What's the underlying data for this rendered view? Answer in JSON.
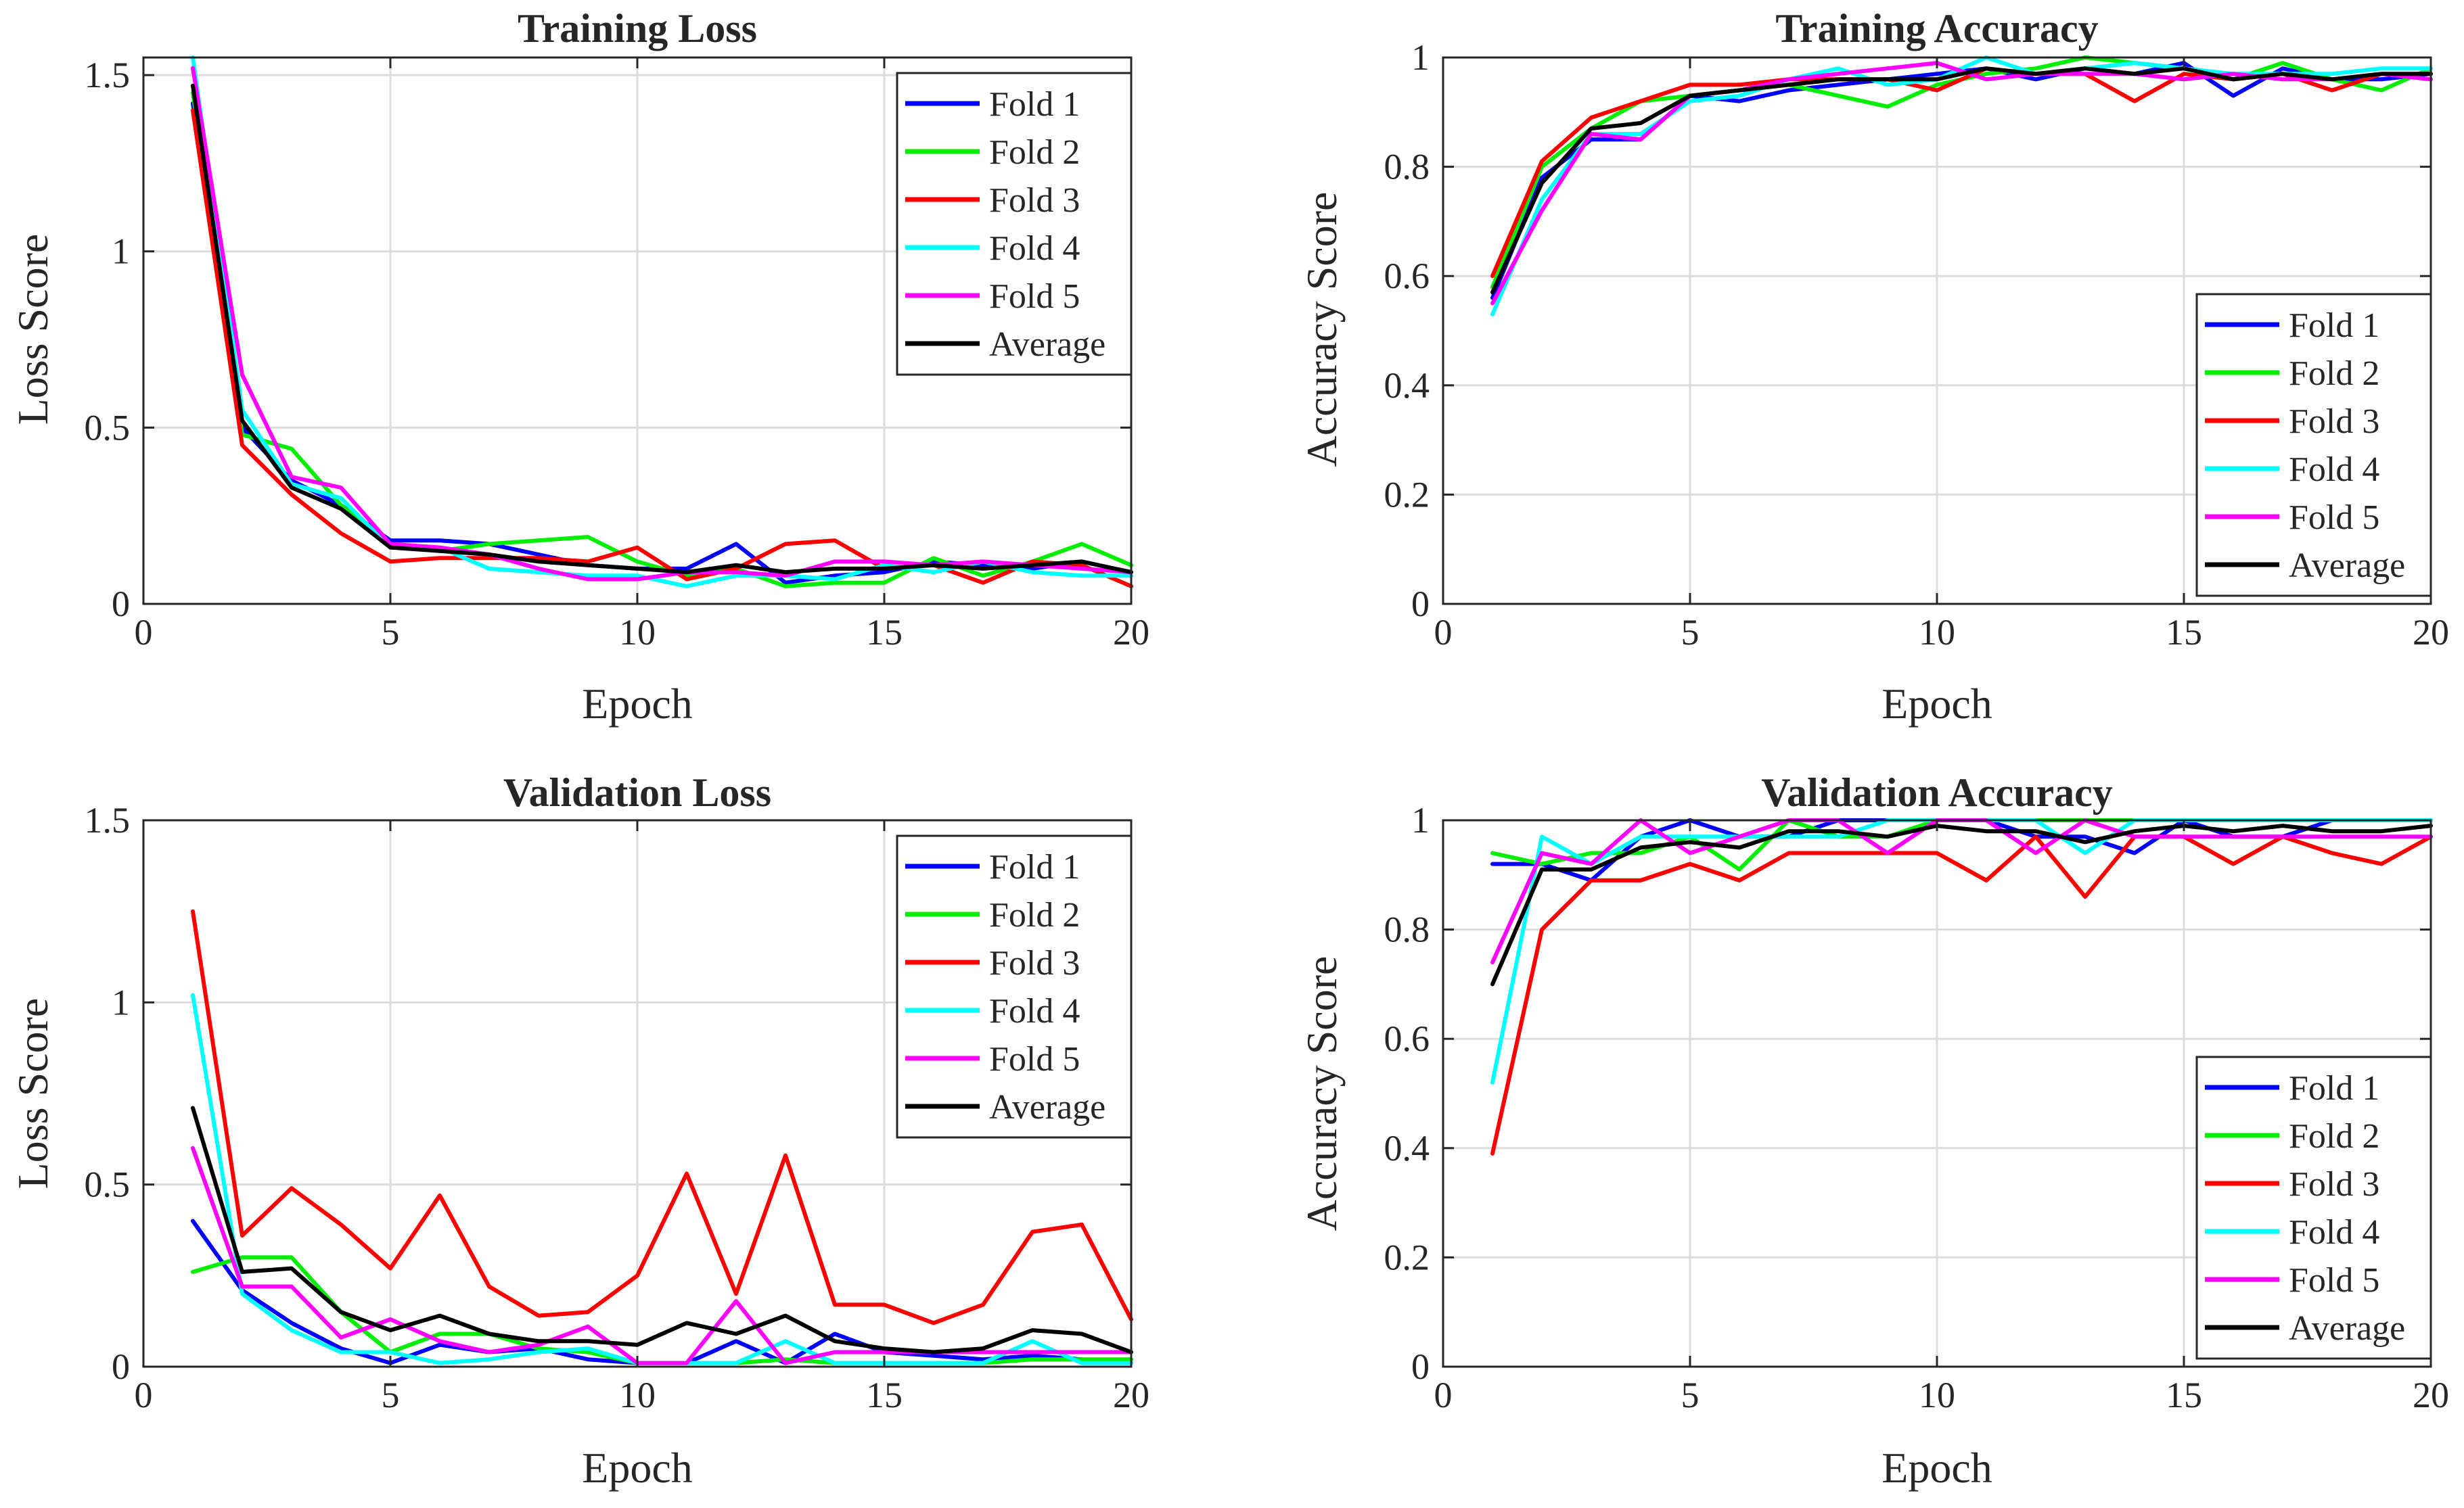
{
  "legend_labels": [
    "Fold 1",
    "Fold 2",
    "Fold 3",
    "Fold 4",
    "Fold 5",
    "Average"
  ],
  "colors": {
    "Fold 1": "#0000ff",
    "Fold 2": "#00ee00",
    "Fold 3": "#ff0000",
    "Fold 4": "#00ffff",
    "Fold 5": "#ff00ff",
    "Average": "#000000"
  },
  "chart_data": [
    {
      "type": "line",
      "title": "Training Loss",
      "xlabel": "Epoch",
      "ylabel": "Loss Score",
      "xlim": [
        0,
        20
      ],
      "ylim": [
        0,
        1.55
      ],
      "xticks": [
        0,
        5,
        10,
        15,
        20
      ],
      "yticks": [
        0,
        0.5,
        1,
        1.5
      ],
      "xtick_labels": [
        "0",
        "5",
        "10",
        "15",
        "20"
      ],
      "ytick_labels": [
        "0",
        "0.5",
        "1",
        "1.5"
      ],
      "grid": true,
      "legend_position": "top-right",
      "x": [
        1,
        2,
        3,
        4,
        5,
        6,
        7,
        8,
        9,
        10,
        11,
        12,
        13,
        14,
        15,
        16,
        17,
        18,
        19,
        20
      ],
      "series": [
        {
          "name": "Fold 1",
          "values": [
            1.42,
            0.5,
            0.35,
            0.28,
            0.18,
            0.18,
            0.17,
            0.14,
            0.11,
            0.1,
            0.1,
            0.17,
            0.06,
            0.08,
            0.09,
            0.12,
            0.11,
            0.1,
            0.12,
            0.09
          ]
        },
        {
          "name": "Fold 2",
          "values": [
            1.45,
            0.48,
            0.44,
            0.28,
            0.17,
            0.15,
            0.17,
            0.18,
            0.19,
            0.12,
            0.08,
            0.1,
            0.05,
            0.06,
            0.06,
            0.13,
            0.08,
            0.12,
            0.17,
            0.11
          ]
        },
        {
          "name": "Fold 3",
          "values": [
            1.4,
            0.45,
            0.31,
            0.2,
            0.12,
            0.13,
            0.13,
            0.13,
            0.12,
            0.16,
            0.07,
            0.1,
            0.17,
            0.18,
            0.1,
            0.11,
            0.06,
            0.12,
            0.11,
            0.05
          ]
        },
        {
          "name": "Fold 4",
          "values": [
            1.55,
            0.55,
            0.34,
            0.3,
            0.16,
            0.16,
            0.1,
            0.09,
            0.08,
            0.08,
            0.05,
            0.08,
            0.08,
            0.07,
            0.11,
            0.09,
            0.12,
            0.09,
            0.08,
            0.08
          ]
        },
        {
          "name": "Fold 5",
          "values": [
            1.52,
            0.65,
            0.36,
            0.33,
            0.17,
            0.16,
            0.14,
            0.1,
            0.07,
            0.07,
            0.09,
            0.09,
            0.08,
            0.12,
            0.12,
            0.11,
            0.12,
            0.11,
            0.1,
            0.09
          ]
        },
        {
          "name": "Average",
          "values": [
            1.47,
            0.52,
            0.33,
            0.27,
            0.16,
            0.15,
            0.14,
            0.12,
            0.11,
            0.1,
            0.09,
            0.11,
            0.09,
            0.1,
            0.1,
            0.11,
            0.1,
            0.11,
            0.12,
            0.09
          ]
        }
      ]
    },
    {
      "type": "line",
      "title": "Training Accuracy",
      "xlabel": "Epoch",
      "ylabel": "Accuracy Score",
      "xlim": [
        0,
        20
      ],
      "ylim": [
        0,
        1
      ],
      "xticks": [
        0,
        5,
        10,
        15,
        20
      ],
      "yticks": [
        0,
        0.2,
        0.4,
        0.6,
        0.8,
        1
      ],
      "xtick_labels": [
        "0",
        "5",
        "10",
        "15",
        "20"
      ],
      "ytick_labels": [
        "0",
        "0.2",
        "0.4",
        "0.6",
        "0.8",
        "1"
      ],
      "grid": true,
      "legend_position": "bottom-right",
      "x": [
        1,
        2,
        3,
        4,
        5,
        6,
        7,
        8,
        9,
        10,
        11,
        12,
        13,
        14,
        15,
        16,
        17,
        18,
        19,
        20
      ],
      "series": [
        {
          "name": "Fold 1",
          "values": [
            0.56,
            0.78,
            0.85,
            0.85,
            0.93,
            0.92,
            0.94,
            0.95,
            0.96,
            0.97,
            0.98,
            0.96,
            0.98,
            0.97,
            0.99,
            0.93,
            0.98,
            0.96,
            0.96,
            0.97
          ]
        },
        {
          "name": "Fold 2",
          "values": [
            0.58,
            0.8,
            0.87,
            0.92,
            0.93,
            0.94,
            0.95,
            0.93,
            0.91,
            0.95,
            0.97,
            0.98,
            1.0,
            0.99,
            0.98,
            0.96,
            0.99,
            0.96,
            0.94,
            0.98
          ]
        },
        {
          "name": "Fold 3",
          "values": [
            0.6,
            0.81,
            0.89,
            0.92,
            0.95,
            0.95,
            0.96,
            0.96,
            0.96,
            0.94,
            0.98,
            0.97,
            0.97,
            0.92,
            0.97,
            0.96,
            0.97,
            0.94,
            0.97,
            0.97
          ]
        },
        {
          "name": "Fold 4",
          "values": [
            0.53,
            0.74,
            0.86,
            0.86,
            0.92,
            0.93,
            0.96,
            0.98,
            0.95,
            0.96,
            1.0,
            0.97,
            0.98,
            0.99,
            0.98,
            0.97,
            0.97,
            0.97,
            0.98,
            0.98
          ]
        },
        {
          "name": "Fold 5",
          "values": [
            0.55,
            0.72,
            0.86,
            0.85,
            0.93,
            0.94,
            0.96,
            0.97,
            0.98,
            0.99,
            0.96,
            0.97,
            0.97,
            0.97,
            0.96,
            0.97,
            0.96,
            0.96,
            0.97,
            0.96
          ]
        },
        {
          "name": "Average",
          "values": [
            0.57,
            0.77,
            0.87,
            0.88,
            0.93,
            0.94,
            0.95,
            0.96,
            0.96,
            0.96,
            0.98,
            0.97,
            0.98,
            0.97,
            0.98,
            0.96,
            0.97,
            0.96,
            0.97,
            0.97
          ]
        }
      ]
    },
    {
      "type": "line",
      "title": "Validation Loss",
      "xlabel": "Epoch",
      "ylabel": "Loss Score",
      "xlim": [
        0,
        20
      ],
      "ylim": [
        0,
        1.5
      ],
      "xticks": [
        0,
        5,
        10,
        15,
        20
      ],
      "yticks": [
        0,
        0.5,
        1,
        1.5
      ],
      "xtick_labels": [
        "0",
        "5",
        "10",
        "15",
        "20"
      ],
      "ytick_labels": [
        "0",
        "0.5",
        "1",
        "1.5"
      ],
      "grid": true,
      "legend_position": "top-right",
      "x": [
        1,
        2,
        3,
        4,
        5,
        6,
        7,
        8,
        9,
        10,
        11,
        12,
        13,
        14,
        15,
        16,
        17,
        18,
        19,
        20
      ],
      "series": [
        {
          "name": "Fold 1",
          "values": [
            0.4,
            0.21,
            0.12,
            0.05,
            0.01,
            0.06,
            0.04,
            0.05,
            0.02,
            0.01,
            0.01,
            0.07,
            0.01,
            0.09,
            0.04,
            0.03,
            0.02,
            0.03,
            0.02,
            0.01
          ]
        },
        {
          "name": "Fold 2",
          "values": [
            0.26,
            0.3,
            0.3,
            0.15,
            0.04,
            0.09,
            0.09,
            0.05,
            0.04,
            0.01,
            0.01,
            0.01,
            0.02,
            0.01,
            0.01,
            0.01,
            0.01,
            0.02,
            0.02,
            0.02
          ]
        },
        {
          "name": "Fold 3",
          "values": [
            1.25,
            0.36,
            0.49,
            0.39,
            0.27,
            0.47,
            0.22,
            0.14,
            0.15,
            0.25,
            0.53,
            0.2,
            0.58,
            0.17,
            0.17,
            0.12,
            0.17,
            0.37,
            0.39,
            0.13
          ]
        },
        {
          "name": "Fold 4",
          "values": [
            1.02,
            0.2,
            0.1,
            0.04,
            0.04,
            0.01,
            0.02,
            0.04,
            0.05,
            0.01,
            0.01,
            0.01,
            0.07,
            0.01,
            0.01,
            0.01,
            0.01,
            0.07,
            0.01,
            0.01
          ]
        },
        {
          "name": "Fold 5",
          "values": [
            0.6,
            0.22,
            0.22,
            0.08,
            0.13,
            0.07,
            0.04,
            0.06,
            0.11,
            0.01,
            0.01,
            0.18,
            0.01,
            0.04,
            0.04,
            0.04,
            0.04,
            0.04,
            0.04,
            0.04
          ]
        },
        {
          "name": "Average",
          "values": [
            0.71,
            0.26,
            0.27,
            0.15,
            0.1,
            0.14,
            0.09,
            0.07,
            0.07,
            0.06,
            0.12,
            0.09,
            0.14,
            0.07,
            0.05,
            0.04,
            0.05,
            0.1,
            0.09,
            0.04
          ]
        }
      ]
    },
    {
      "type": "line",
      "title": "Validation Accuracy",
      "xlabel": "Epoch",
      "ylabel": "Accuracy Score",
      "xlim": [
        0,
        20
      ],
      "ylim": [
        0,
        1
      ],
      "xticks": [
        0,
        5,
        10,
        15,
        20
      ],
      "yticks": [
        0,
        0.2,
        0.4,
        0.6,
        0.8,
        1
      ],
      "xtick_labels": [
        "0",
        "5",
        "10",
        "15",
        "20"
      ],
      "ytick_labels": [
        "0",
        "0.2",
        "0.4",
        "0.6",
        "0.8",
        "1"
      ],
      "grid": true,
      "legend_position": "bottom-right",
      "x": [
        1,
        2,
        3,
        4,
        5,
        6,
        7,
        8,
        9,
        10,
        11,
        12,
        13,
        14,
        15,
        16,
        17,
        18,
        19,
        20
      ],
      "series": [
        {
          "name": "Fold 1",
          "values": [
            0.92,
            0.92,
            0.89,
            0.97,
            1.0,
            0.97,
            0.97,
            1.0,
            1.0,
            1.0,
            1.0,
            0.97,
            0.97,
            0.94,
            1.0,
            0.97,
            0.97,
            1.0,
            1.0,
            1.0
          ]
        },
        {
          "name": "Fold 2",
          "values": [
            0.94,
            0.92,
            0.94,
            0.94,
            0.97,
            0.91,
            1.0,
            0.97,
            0.97,
            1.0,
            1.0,
            1.0,
            1.0,
            1.0,
            1.0,
            1.0,
            1.0,
            1.0,
            1.0,
            1.0
          ]
        },
        {
          "name": "Fold 3",
          "values": [
            0.39,
            0.8,
            0.89,
            0.89,
            0.92,
            0.89,
            0.94,
            0.94,
            0.94,
            0.94,
            0.89,
            0.97,
            0.86,
            0.97,
            0.97,
            0.92,
            0.97,
            0.94,
            0.92,
            0.97
          ]
        },
        {
          "name": "Fold 4",
          "values": [
            0.52,
            0.97,
            0.92,
            0.97,
            0.97,
            0.97,
            0.97,
            0.97,
            1.0,
            1.0,
            1.0,
            1.0,
            0.94,
            1.0,
            1.0,
            1.0,
            1.0,
            1.0,
            1.0,
            1.0
          ]
        },
        {
          "name": "Fold 5",
          "values": [
            0.74,
            0.94,
            0.92,
            1.0,
            0.94,
            0.97,
            1.0,
            1.0,
            0.94,
            1.0,
            1.0,
            0.94,
            1.0,
            0.97,
            0.97,
            0.97,
            0.97,
            0.97,
            0.97,
            0.97
          ]
        },
        {
          "name": "Average",
          "values": [
            0.7,
            0.91,
            0.91,
            0.95,
            0.96,
            0.95,
            0.98,
            0.98,
            0.97,
            0.99,
            0.98,
            0.98,
            0.96,
            0.98,
            0.99,
            0.98,
            0.99,
            0.98,
            0.98,
            0.99
          ]
        }
      ]
    }
  ]
}
